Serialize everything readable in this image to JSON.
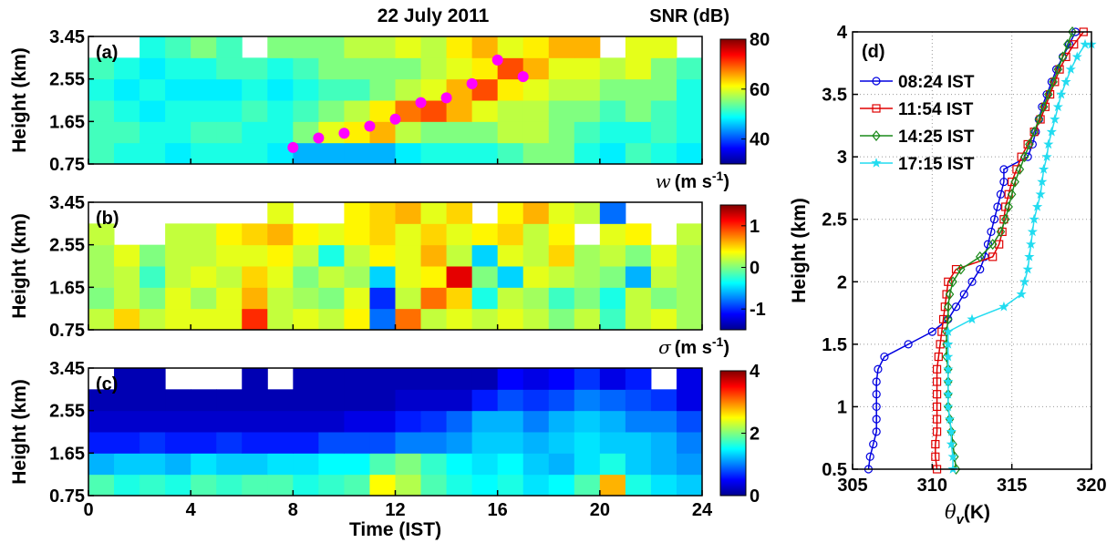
{
  "chart_data": [
    {
      "type": "heatmap",
      "panel_label": "(a)",
      "title": "22 July 2011",
      "colorbar_label": "SNR (dB)",
      "ylabel": "Height (km)",
      "xlim": [
        0,
        24
      ],
      "xticks": [
        0,
        4,
        8,
        12,
        16,
        20,
        24
      ],
      "show_xtick_labels": false,
      "ylim": [
        0.75,
        3.45
      ],
      "yticks": [
        0.75,
        1.65,
        2.55,
        3.45
      ],
      "clim": [
        30,
        80
      ],
      "cticks": [
        40,
        60,
        80
      ],
      "colormap": "jet",
      "xbins": [
        0,
        1,
        2,
        3,
        4,
        5,
        6,
        7,
        8,
        9,
        10,
        11,
        12,
        13,
        14,
        15,
        16,
        17,
        18,
        19,
        20,
        21,
        22,
        23,
        24
      ],
      "ybins": [
        0.75,
        1.2,
        1.65,
        2.1,
        2.55,
        3.0,
        3.45
      ],
      "z": [
        [
          52,
          50,
          50,
          48,
          50,
          50,
          50,
          48,
          45,
          45,
          45,
          45,
          48,
          50,
          50,
          50,
          52,
          55,
          55,
          50,
          48,
          52,
          50,
          48
        ],
        [
          52,
          52,
          50,
          50,
          52,
          52,
          50,
          50,
          55,
          60,
          62,
          65,
          58,
          55,
          55,
          55,
          58,
          58,
          55,
          52,
          50,
          50,
          52,
          50
        ],
        [
          52,
          50,
          48,
          50,
          50,
          50,
          52,
          50,
          52,
          55,
          58,
          62,
          68,
          70,
          65,
          60,
          58,
          58,
          55,
          55,
          52,
          55,
          52,
          50
        ],
        [
          50,
          48,
          50,
          48,
          48,
          48,
          50,
          48,
          50,
          52,
          52,
          55,
          58,
          60,
          65,
          70,
          62,
          60,
          58,
          58,
          55,
          55,
          55,
          50
        ],
        [
          52,
          50,
          48,
          50,
          50,
          52,
          52,
          50,
          52,
          55,
          55,
          55,
          55,
          58,
          60,
          62,
          70,
          65,
          60,
          60,
          58,
          60,
          55,
          52
        ],
        [
          null,
          null,
          50,
          52,
          55,
          52,
          null,
          55,
          55,
          55,
          58,
          58,
          60,
          58,
          62,
          65,
          60,
          62,
          65,
          65,
          null,
          60,
          60,
          null
        ]
      ],
      "overlay": {
        "color": "#ff00ff",
        "x": [
          8,
          9,
          10,
          11,
          12,
          13,
          14,
          15,
          16,
          17
        ],
        "values": [
          1.1,
          1.3,
          1.4,
          1.55,
          1.7,
          2.05,
          2.15,
          2.45,
          2.95,
          2.6
        ]
      }
    },
    {
      "type": "heatmap",
      "panel_label": "(b)",
      "colorbar_label": {
        "symbol": "w",
        "unit": "(m s",
        "exponent": "-1",
        "close": ")"
      },
      "ylabel": "Height (km)",
      "xlim": [
        0,
        24
      ],
      "xticks": [
        0,
        4,
        8,
        12,
        16,
        20,
        24
      ],
      "show_xtick_labels": false,
      "ylim": [
        0.75,
        3.45
      ],
      "yticks": [
        0.75,
        1.65,
        2.55,
        3.45
      ],
      "clim": [
        -1.5,
        1.5
      ],
      "cticks": [
        -1,
        0,
        1
      ],
      "colormap": "jet",
      "xbins": [
        0,
        1,
        2,
        3,
        4,
        5,
        6,
        7,
        8,
        9,
        10,
        11,
        12,
        13,
        14,
        15,
        16,
        17,
        18,
        19,
        20,
        21,
        22,
        23,
        24
      ],
      "ybins": [
        0.75,
        1.2,
        1.65,
        2.1,
        2.55,
        3.0,
        3.45
      ],
      "z": [
        [
          0.2,
          0.5,
          0.2,
          0.3,
          0.3,
          0.3,
          1.0,
          0.2,
          0.3,
          0.2,
          0.4,
          -0.8,
          0.8,
          0.2,
          0.3,
          0.2,
          0.3,
          0.2,
          0,
          0.2,
          -0.2,
          0.2,
          0.3,
          0.1
        ],
        [
          0,
          0.2,
          0,
          0.3,
          0.1,
          0.3,
          0.6,
          0.2,
          0.1,
          0,
          0.3,
          -1.0,
          0.2,
          0.8,
          0.5,
          -0.3,
          0.2,
          0.1,
          -0.2,
          0,
          -0.3,
          0.2,
          0,
          0.1
        ],
        [
          0.1,
          0.2,
          -0.2,
          0.2,
          0.3,
          0.2,
          0.5,
          0.3,
          0,
          0.2,
          0.1,
          -0.5,
          0.3,
          0.4,
          1.2,
          0,
          -0.5,
          0.3,
          0.2,
          0.1,
          0,
          -0.6,
          0.2,
          0.1
        ],
        [
          0.1,
          0.3,
          0,
          0.2,
          0.2,
          0.3,
          0.3,
          0.4,
          0.2,
          -0.3,
          0.2,
          0.4,
          0.3,
          0.6,
          0.2,
          -0.5,
          0.3,
          0.2,
          0.5,
          0.1,
          0.2,
          0,
          0.3,
          0.1
        ],
        [
          0.2,
          null,
          null,
          0.2,
          0.2,
          0.4,
          0.5,
          0.6,
          0.4,
          0.3,
          0.4,
          0.5,
          0.3,
          0.5,
          0.3,
          0.4,
          0.5,
          0.2,
          0.4,
          null,
          0.3,
          0.4,
          null,
          0.2
        ],
        [
          null,
          null,
          null,
          null,
          null,
          null,
          null,
          0.3,
          null,
          null,
          0.4,
          0.5,
          0.6,
          0.3,
          0.5,
          null,
          0.4,
          0.6,
          0.3,
          0.2,
          -0.8,
          null,
          null,
          null
        ]
      ]
    },
    {
      "type": "heatmap",
      "panel_label": "(c)",
      "colorbar_label": {
        "symbol": "σ",
        "unit": "(m s",
        "exponent": "-1",
        "close": ")"
      },
      "ylabel": "Height (km)",
      "xlabel": "Time (IST)",
      "xlim": [
        0,
        24
      ],
      "xticks": [
        0,
        4,
        8,
        12,
        16,
        20,
        24
      ],
      "show_xtick_labels": true,
      "ylim": [
        0.75,
        3.45
      ],
      "yticks": [
        0.75,
        1.65,
        2.55,
        3.45
      ],
      "clim": [
        0,
        4
      ],
      "cticks": [
        0,
        2,
        4
      ],
      "colormap": "jet",
      "xbins": [
        0,
        1,
        2,
        3,
        4,
        5,
        6,
        7,
        8,
        9,
        10,
        11,
        12,
        13,
        14,
        15,
        16,
        17,
        18,
        19,
        20,
        21,
        22,
        23,
        24
      ],
      "ybins": [
        0.75,
        1.2,
        1.65,
        2.1,
        2.55,
        3.0,
        3.45
      ],
      "z": [
        [
          1.8,
          1.6,
          1.7,
          1.6,
          1.8,
          1.7,
          1.8,
          1.8,
          1.6,
          1.7,
          1.8,
          2.5,
          2.2,
          1.8,
          1.6,
          1.5,
          1.6,
          1.4,
          1.5,
          1.8,
          2.8,
          1.6,
          1.4,
          1.3
        ],
        [
          1.2,
          1.3,
          1.3,
          1.2,
          1.4,
          1.3,
          1.3,
          1.4,
          1.4,
          1.5,
          1.5,
          1.8,
          2.0,
          1.7,
          1.5,
          1.4,
          1.5,
          1.3,
          1.2,
          1.4,
          1.6,
          1.3,
          1.2,
          1.1
        ],
        [
          0.6,
          0.6,
          0.7,
          0.6,
          0.6,
          0.7,
          0.6,
          0.6,
          0.6,
          0.8,
          0.8,
          0.8,
          1.0,
          1.0,
          1.1,
          1.3,
          1.3,
          1.2,
          1.3,
          1.4,
          1.3,
          1.3,
          1.2,
          1.0
        ],
        [
          0.3,
          0.3,
          0.3,
          0.3,
          0.3,
          0.3,
          0.3,
          0.3,
          0.3,
          0.3,
          0.4,
          0.4,
          0.6,
          0.7,
          0.9,
          1.2,
          1.2,
          1.0,
          1.2,
          1.3,
          1.2,
          1.0,
          1.0,
          0.8
        ],
        [
          0.2,
          0.2,
          0.2,
          0.2,
          0.2,
          0.2,
          0.2,
          0.2,
          0.2,
          0.2,
          0.2,
          0.2,
          0.3,
          0.3,
          0.3,
          0.6,
          0.8,
          0.7,
          0.8,
          1.0,
          0.9,
          0.8,
          0.7,
          0.4
        ],
        [
          null,
          0.2,
          0.2,
          null,
          null,
          null,
          0.2,
          null,
          0.2,
          0.2,
          0.2,
          0.2,
          0.2,
          0.2,
          0.2,
          0.2,
          0.5,
          0.4,
          0.5,
          0.7,
          0.4,
          0.6,
          null,
          0.4
        ]
      ]
    },
    {
      "type": "line",
      "panel_label": "(d)",
      "ylabel": "Height (km)",
      "xlabel": {
        "symbol": "θ",
        "subscript": "v",
        "unit": "(K)"
      },
      "xlim": [
        305,
        320
      ],
      "xticks": [
        305,
        310,
        315,
        320
      ],
      "ylim": [
        0.5,
        4
      ],
      "yticks": [
        0.5,
        1,
        1.5,
        2,
        2.5,
        3,
        3.5,
        4
      ],
      "grid": true,
      "legend": "upper-left",
      "series": [
        {
          "name": "08:24 IST",
          "color": "#0000e0",
          "marker": "circle",
          "x": [
            306,
            306.1,
            306.3,
            306.5,
            306.5,
            306.5,
            306.5,
            306.5,
            306.6,
            307,
            308.5,
            310,
            311,
            311.5,
            312,
            312.5,
            313,
            313.3,
            313.5,
            313.7,
            313.9,
            314.1,
            314.3,
            314.5,
            314.5,
            316,
            316.3,
            316.5,
            316.7,
            316.9,
            317.2,
            317.5,
            317.8,
            318.2,
            318.6,
            319
          ],
          "values": [
            0.5,
            0.6,
            0.7,
            0.8,
            0.9,
            1.0,
            1.1,
            1.2,
            1.3,
            1.4,
            1.5,
            1.6,
            1.7,
            1.8,
            1.9,
            2.0,
            2.1,
            2.2,
            2.3,
            2.4,
            2.5,
            2.6,
            2.7,
            2.8,
            2.9,
            3.0,
            3.1,
            3.2,
            3.3,
            3.4,
            3.5,
            3.6,
            3.7,
            3.8,
            3.9,
            4.0
          ]
        },
        {
          "name": "11:54 IST",
          "color": "#e00000",
          "marker": "square",
          "x": [
            310.3,
            310.2,
            310.2,
            310.3,
            310.3,
            310.3,
            310.3,
            310.3,
            310.3,
            310.4,
            310.5,
            310.6,
            310.7,
            310.8,
            310.9,
            311,
            311.5,
            313.8,
            314.2,
            314.4,
            314.5,
            314.6,
            314.8,
            315,
            315.3,
            315.6,
            316,
            316.4,
            316.8,
            317.1,
            317.4,
            317.7,
            318,
            318.4,
            318.9,
            319.5
          ],
          "values": [
            0.5,
            0.6,
            0.7,
            0.8,
            0.9,
            1.0,
            1.1,
            1.2,
            1.3,
            1.4,
            1.5,
            1.6,
            1.7,
            1.8,
            1.9,
            2.0,
            2.1,
            2.2,
            2.3,
            2.4,
            2.5,
            2.6,
            2.7,
            2.8,
            2.9,
            3.0,
            3.1,
            3.2,
            3.3,
            3.4,
            3.5,
            3.6,
            3.7,
            3.8,
            3.9,
            4.0
          ]
        },
        {
          "name": "14:25 IST",
          "color": "#1a8a1a",
          "marker": "diamond",
          "x": [
            311.5,
            311.4,
            311.3,
            311.2,
            311.1,
            311,
            311,
            311,
            311,
            310.9,
            310.9,
            310.9,
            311,
            311,
            311.1,
            311.3,
            311.8,
            313,
            313.8,
            314.3,
            314.6,
            314.8,
            315,
            315.2,
            315.5,
            315.8,
            316.1,
            316.4,
            316.7,
            317,
            317.3,
            317.6,
            317.9,
            318.2,
            318.5,
            318.8
          ],
          "values": [
            0.5,
            0.6,
            0.7,
            0.8,
            0.9,
            1.0,
            1.1,
            1.2,
            1.3,
            1.4,
            1.5,
            1.6,
            1.7,
            1.8,
            1.9,
            2.0,
            2.1,
            2.2,
            2.3,
            2.4,
            2.5,
            2.6,
            2.7,
            2.8,
            2.9,
            3.0,
            3.1,
            3.2,
            3.3,
            3.4,
            3.5,
            3.6,
            3.7,
            3.8,
            3.9,
            4.0
          ]
        },
        {
          "name": "17:15 IST",
          "color": "#22dcf0",
          "marker": "star",
          "x": [
            311.3,
            311.3,
            311.2,
            311.2,
            311.1,
            311,
            311,
            311,
            311,
            311,
            311,
            311,
            312.5,
            314.5,
            315.6,
            315.8,
            316,
            316.1,
            316.2,
            316.3,
            316.4,
            316.6,
            316.8,
            316.9,
            317,
            317.2,
            317.3,
            317.5,
            317.7,
            317.9,
            318.1,
            318.4,
            318.7,
            319.1,
            319.6,
            320
          ],
          "values": [
            0.5,
            0.6,
            0.7,
            0.8,
            0.9,
            1.0,
            1.1,
            1.2,
            1.3,
            1.4,
            1.5,
            1.6,
            1.7,
            1.8,
            1.9,
            2.0,
            2.1,
            2.2,
            2.3,
            2.4,
            2.5,
            2.6,
            2.7,
            2.8,
            2.9,
            3.0,
            3.1,
            3.2,
            3.3,
            3.4,
            3.5,
            3.6,
            3.7,
            3.8,
            3.9,
            3.9
          ]
        }
      ]
    }
  ]
}
